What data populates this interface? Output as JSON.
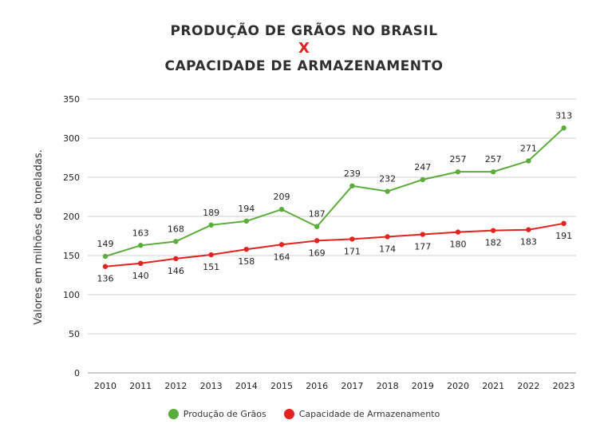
{
  "chart_data": {
    "type": "line",
    "title_line1": "PRODUÇÃO DE GRÃOS NO BRASIL",
    "title_x": "X",
    "title_line2": "CAPACIDADE DE ARMAZENAMENTO",
    "ylabel": "Valores em milhões de toneladas.",
    "xlabel": "",
    "ylim": [
      0,
      350
    ],
    "yticks": [
      0,
      50,
      100,
      150,
      200,
      250,
      300,
      350
    ],
    "grid": true,
    "legend_position": "bottom",
    "x": [
      "2010",
      "2011",
      "2012",
      "2013",
      "2014",
      "2015",
      "2016",
      "2017",
      "2018",
      "2019",
      "2020",
      "2021",
      "2022",
      "2023"
    ],
    "series": [
      {
        "name": "Produção de Grãos",
        "color": "#5aad3a",
        "values": [
          149,
          163,
          168,
          189,
          194,
          209,
          187,
          239,
          232,
          247,
          257,
          257,
          271,
          313
        ]
      },
      {
        "name": "Capacidade de Armazenamento",
        "color": "#e32320",
        "values": [
          136,
          140,
          146,
          151,
          158,
          164,
          169,
          171,
          174,
          177,
          180,
          182,
          183,
          191
        ]
      }
    ]
  }
}
